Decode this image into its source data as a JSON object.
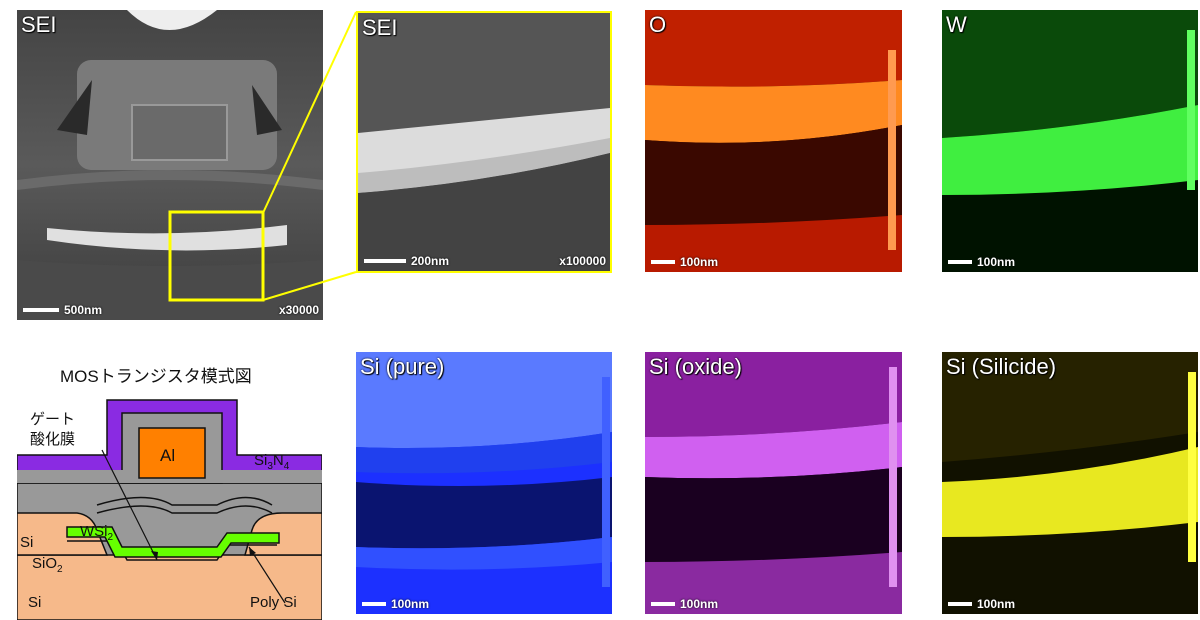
{
  "panels": {
    "sei_overview": {
      "label": "SEI",
      "scale": "500nm",
      "mag": "x30000"
    },
    "sei_zoom": {
      "label": "SEI",
      "scale": "200nm",
      "mag": "x100000"
    },
    "o_map": {
      "label": "O",
      "scale": "100nm"
    },
    "w_map": {
      "label": "W",
      "scale": "100nm"
    },
    "si_pure_map": {
      "label": "Si (pure)",
      "scale": "100nm"
    },
    "si_oxide_map": {
      "label": "Si (oxide)",
      "scale": "100nm"
    },
    "si_silicide_map": {
      "label": "Si (Silicide)",
      "scale": "100nm"
    }
  },
  "diagram": {
    "title": "MOSトランジスタ模式図",
    "gate_oxide_line1": "ゲート",
    "gate_oxide_line2": "酸化膜",
    "al": "Al",
    "si3n4_a": "Si",
    "si3n4_b": "3",
    "si3n4_c": "N",
    "si3n4_d": "4",
    "si_left": "Si",
    "wsi2_a": "WSi",
    "wsi2_b": "2",
    "sio2_a": "SiO",
    "sio2_b": "2",
    "si_bottom": "Si",
    "poly_si": "Poly Si"
  },
  "colors": {
    "sei_fg": "#e8e8e8",
    "o_map": "#ff5010",
    "w_map": "#40ff40",
    "si_pure": "#3050ff",
    "si_oxide": "#cc40ff",
    "si_silicide": "#ffff20",
    "callout": "#ffff00",
    "si3n4": "#8a2be2",
    "al": "#ff8000",
    "wsi2": "#66ff00",
    "si_substrate": "#f6b98a",
    "oxide_gray": "#999999"
  }
}
